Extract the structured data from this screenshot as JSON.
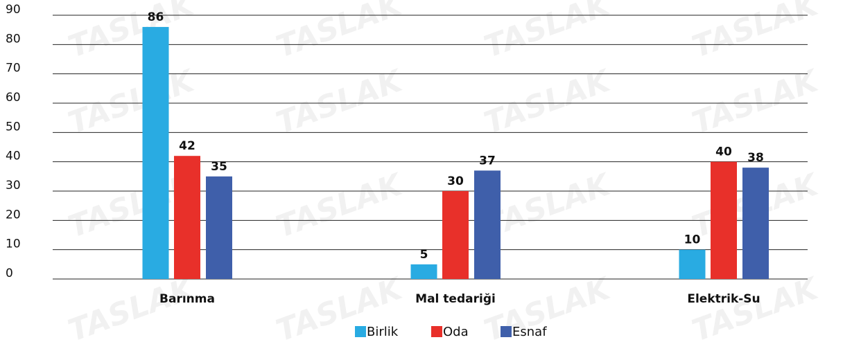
{
  "chart_data": {
    "type": "bar",
    "watermark": "TASLAK",
    "categories": [
      "Barınma",
      "Mal tedariği",
      "Elektrik-Su"
    ],
    "series": [
      {
        "name": "Birlik",
        "color": "#29abe2",
        "values": [
          86,
          5,
          10
        ]
      },
      {
        "name": "Oda",
        "color": "#e8302a",
        "values": [
          42,
          30,
          40
        ]
      },
      {
        "name": "Esnaf",
        "color": "#3f5faa",
        "values": [
          35,
          37,
          38
        ]
      }
    ],
    "ylim": [
      0,
      90
    ],
    "yticks": [
      0,
      10,
      20,
      30,
      40,
      50,
      60,
      70,
      80,
      90
    ],
    "grid": true
  }
}
